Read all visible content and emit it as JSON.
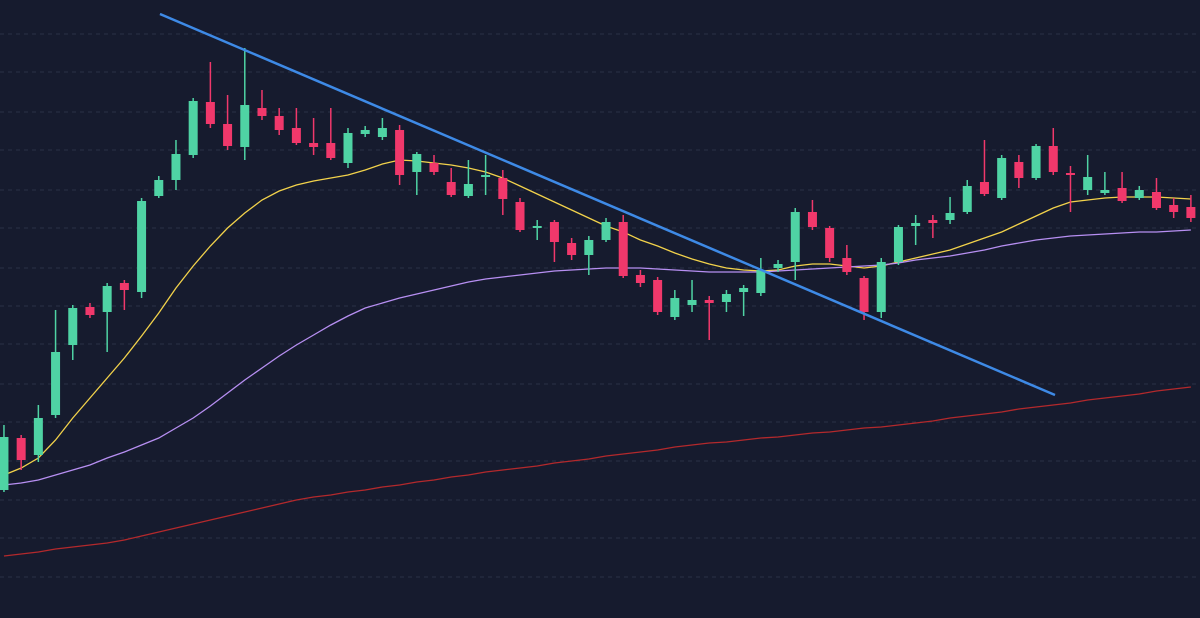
{
  "chart_data": {
    "type": "candlestick",
    "background": "#161b2e",
    "up_color": "#4fd3a4",
    "down_color": "#f0386b",
    "xlim": [
      -0.23,
      69.53
    ],
    "ylim": [
      0,
      618
    ],
    "yticks": [
      41,
      80,
      118,
      157,
      196,
      234,
      274,
      312,
      350,
      390,
      428,
      468,
      506,
      546,
      584
    ],
    "grid": true,
    "open": [
      128,
      180,
      163,
      203,
      273,
      311,
      306,
      335,
      326,
      422,
      438,
      463,
      516,
      494,
      471,
      510,
      502,
      490,
      475,
      475,
      455,
      484,
      481,
      488,
      446,
      455,
      436,
      422,
      441,
      440,
      416,
      390,
      396,
      375,
      363,
      378,
      396,
      343,
      338,
      301,
      313,
      318,
      316,
      326,
      325,
      350,
      356,
      406,
      390,
      360,
      340,
      306,
      356,
      392,
      398,
      398,
      406,
      436,
      420,
      456,
      440,
      472,
      445,
      428,
      425,
      430,
      420,
      426,
      413,
      411
    ],
    "high": [
      193,
      183,
      213,
      308,
      313,
      315,
      335,
      338,
      420,
      442,
      478,
      520,
      556,
      523,
      570,
      528,
      510,
      510,
      500,
      510,
      490,
      492,
      500,
      493,
      466,
      463,
      450,
      458,
      463,
      448,
      420,
      398,
      398,
      380,
      382,
      400,
      403,
      348,
      341,
      328,
      338,
      322,
      328,
      333,
      360,
      358,
      410,
      418,
      392,
      373,
      342,
      360,
      393,
      403,
      403,
      421,
      438,
      478,
      463,
      463,
      474,
      490,
      452,
      463,
      446,
      446,
      432,
      440,
      420,
      423
    ],
    "low": [
      126,
      148,
      156,
      200,
      258,
      300,
      266,
      308,
      320,
      420,
      428,
      460,
      490,
      468,
      458,
      498,
      483,
      473,
      463,
      458,
      450,
      481,
      478,
      433,
      423,
      443,
      421,
      420,
      423,
      403,
      386,
      378,
      356,
      358,
      343,
      376,
      340,
      331,
      303,
      298,
      306,
      278,
      306,
      302,
      322,
      346,
      338,
      388,
      356,
      343,
      298,
      300,
      353,
      373,
      380,
      394,
      404,
      422,
      418,
      430,
      438,
      443,
      406,
      423,
      423,
      415,
      418,
      408,
      400,
      396
    ],
    "close": [
      181,
      158,
      200,
      266,
      310,
      303,
      332,
      328,
      417,
      438,
      464,
      517,
      494,
      472,
      513,
      502,
      488,
      475,
      471,
      460,
      485,
      488,
      490,
      443,
      464,
      446,
      423,
      434,
      443,
      419,
      388,
      392,
      376,
      363,
      378,
      396,
      342,
      335,
      306,
      320,
      318,
      315,
      324,
      330,
      348,
      354,
      406,
      391,
      360,
      346,
      306,
      356,
      391,
      395,
      395,
      405,
      432,
      424,
      460,
      440,
      472,
      446,
      443,
      441,
      428,
      417,
      428,
      410,
      406,
      400
    ],
    "series": [
      {
        "color": "#f2d24b",
        "values": [
          143,
          150,
          160,
          178,
          200,
          220,
          240,
          260,
          282,
          305,
          330,
          352,
          372,
          390,
          405,
          418,
          427,
          433,
          437,
          440,
          443,
          448,
          454,
          458,
          457,
          455,
          453,
          450,
          446,
          440,
          432,
          424,
          416,
          408,
          400,
          392,
          386,
          378,
          372,
          365,
          359,
          354,
          350,
          348,
          347,
          348,
          352,
          354,
          354,
          352,
          350,
          352,
          356,
          360,
          364,
          368,
          374,
          380,
          386,
          394,
          402,
          410,
          416,
          418,
          420,
          421,
          421,
          421,
          420,
          419
        ]
      },
      {
        "color": "#b78ff2",
        "values": [
          133,
          135,
          138,
          143,
          148,
          153,
          160,
          166,
          173,
          180,
          190,
          200,
          212,
          225,
          238,
          250,
          262,
          273,
          283,
          293,
          302,
          310,
          315,
          320,
          324,
          328,
          332,
          336,
          339,
          341,
          343,
          345,
          347,
          348,
          349,
          350,
          350,
          350,
          349,
          348,
          347,
          346,
          346,
          346,
          346,
          347,
          348,
          349,
          350,
          351,
          352,
          353,
          355,
          358,
          360,
          362,
          365,
          368,
          372,
          375,
          378,
          380,
          382,
          383,
          384,
          385,
          386,
          386,
          387,
          388
        ]
      },
      {
        "color": "#b3292c",
        "values": [
          62,
          64,
          66,
          69,
          71,
          73,
          75,
          78,
          82,
          86,
          90,
          94,
          98,
          102,
          106,
          110,
          114,
          118,
          121,
          123,
          126,
          128,
          131,
          133,
          136,
          138,
          141,
          143,
          146,
          148,
          150,
          152,
          155,
          157,
          159,
          162,
          164,
          166,
          168,
          171,
          173,
          175,
          176,
          178,
          180,
          181,
          183,
          185,
          186,
          188,
          190,
          191,
          193,
          195,
          197,
          200,
          202,
          204,
          206,
          209,
          211,
          213,
          215,
          218,
          220,
          222,
          224,
          227,
          229,
          231
        ]
      }
    ],
    "trendline": {
      "color": "#3e8ae6",
      "x": [
        9.07,
        61.1
      ],
      "values": [
        604,
        223
      ]
    }
  }
}
